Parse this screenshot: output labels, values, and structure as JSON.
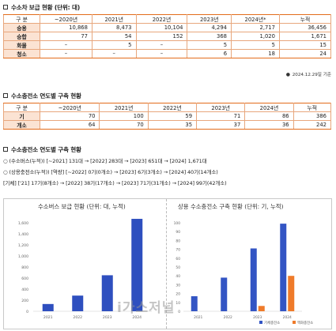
{
  "section1": {
    "title": "수소차 보급 현황 (단위: 대)",
    "headers": [
      "구 분",
      "~2020년",
      "2021년",
      "2022년",
      "2023년",
      "2024년*",
      "누적"
    ],
    "rows": [
      {
        "label": "승용",
        "cells": [
          "10,868",
          "8,473",
          "10,104",
          "4,294",
          "2,717",
          "36,456"
        ]
      },
      {
        "label": "승합",
        "cells": [
          "77",
          "54",
          "152",
          "368",
          "1,020",
          "1,671"
        ]
      },
      {
        "label": "화물",
        "cells": [
          "–",
          "5",
          "–",
          "5",
          "5",
          "15"
        ]
      },
      {
        "label": "청소",
        "cells": [
          "–",
          "–",
          "–",
          "6",
          "18",
          "24"
        ]
      }
    ],
    "note": "2024.12.29일 기준"
  },
  "section2": {
    "title": "수소충전소 연도별 구축 현황",
    "headers": [
      "구 분",
      "~2020년",
      "2021년",
      "2022년",
      "2023년",
      "2024년",
      "누적"
    ],
    "rows": [
      {
        "label": "기",
        "cells": [
          "70",
          "100",
          "59",
          "71",
          "86",
          "386"
        ]
      },
      {
        "label": "개소",
        "cells": [
          "64",
          "70",
          "35",
          "37",
          "36",
          "242"
        ]
      }
    ]
  },
  "section3": {
    "title": "수소충전소 연도별 구축 현황",
    "lines": [
      "○ (수소버스(누적)) [~2021] 131대 → [2022] 283대 → [2023] 651대 → [2024] 1,671대",
      "○ (상용충전소(누적)) [역량] [~2022] 0기(0개소) → [2023] 6기(3개소) → [2024] 40기(14개소)",
      "[기체] ['21] 17기(8개소) → [2022] 38기(17개소) → [2023] 71기(31개소) → [2024] 99기(42개소)"
    ]
  },
  "chart_data": [
    {
      "type": "bar",
      "title": "수소버스 보급 현황 (단위: 대, 누적)",
      "categories": [
        "2021",
        "2022",
        "2023",
        "2024"
      ],
      "values": [
        131,
        283,
        651,
        1671
      ],
      "ylim": [
        0,
        1600
      ],
      "yticks": [
        "0",
        "200",
        "400",
        "600",
        "800",
        "1,000",
        "1,200",
        "1,400",
        "1,600"
      ],
      "xlabels": [
        "2021",
        "2022",
        "2023",
        "2024"
      ],
      "color": "#2e4fbf"
    },
    {
      "type": "bar",
      "title": "상용 수소충전소 구축 현황 (단위: 기, 누적)",
      "categories": [
        "2021",
        "2022",
        "2023",
        "2024"
      ],
      "series": [
        {
          "name": "기체충전소",
          "values": [
            17,
            38,
            71,
            99
          ],
          "color": "#3355c4"
        },
        {
          "name": "액화충전소",
          "values": [
            0,
            0,
            6,
            40
          ],
          "color": "#ef7b2a"
        }
      ],
      "ylim": [
        0,
        100
      ],
      "yticks": [
        "0",
        "10",
        "20",
        "30",
        "40",
        "50",
        "60",
        "70",
        "80",
        "90",
        "100"
      ],
      "xlabels": [
        "2021",
        "2022",
        "2023",
        "2024"
      ],
      "legend_position": "bottom-right"
    }
  ],
  "watermark": "i가스저널"
}
